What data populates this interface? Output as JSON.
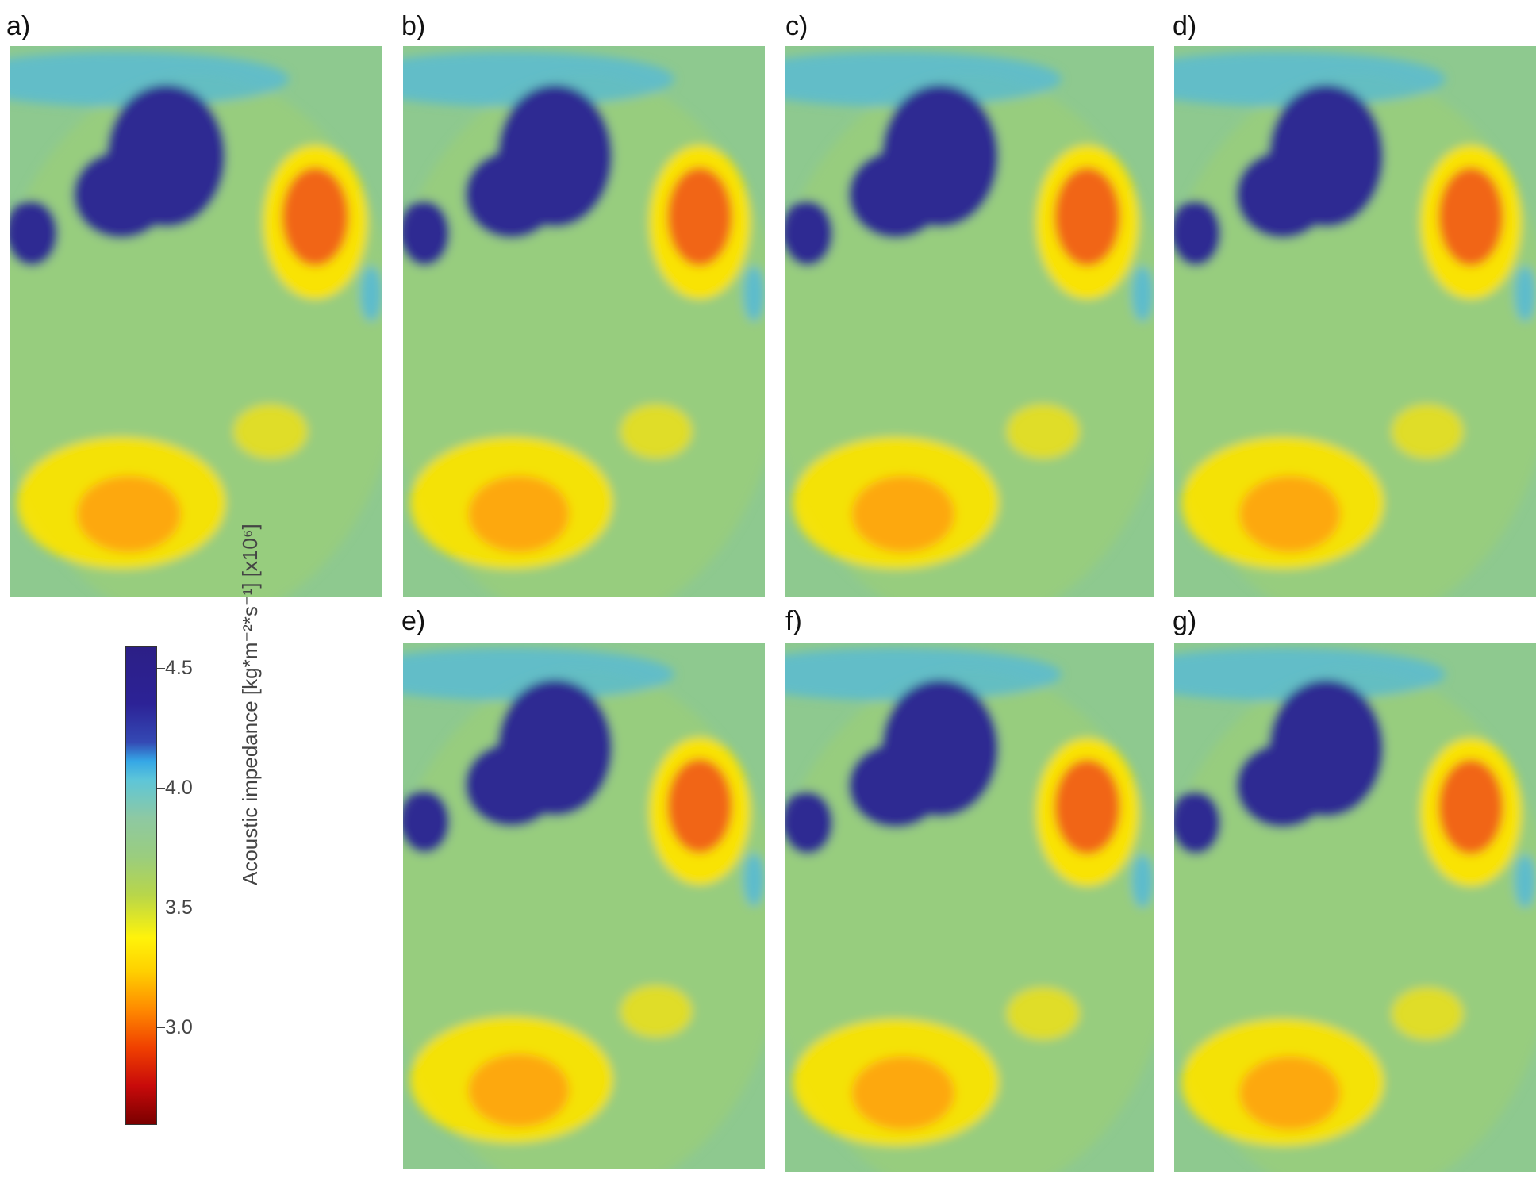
{
  "panels": [
    {
      "label": "a)"
    },
    {
      "label": "b)"
    },
    {
      "label": "c)"
    },
    {
      "label": "d)"
    },
    {
      "label": "e)"
    },
    {
      "label": "f)"
    },
    {
      "label": "g)"
    }
  ],
  "colorbar": {
    "title": "Acoustic impedance [kg*m⁻²*s⁻¹] [x10⁶]",
    "ticks": [
      "4.5",
      "4.0",
      "3.5",
      "3.0"
    ],
    "tick_values": [
      4.5,
      4.0,
      3.5,
      3.0
    ],
    "range": [
      2.6,
      4.6
    ],
    "colors": [
      "#2c1f86",
      "#35a7e6",
      "#8ec9a2",
      "#fff30a",
      "#ff8a00",
      "#c80a0a",
      "#7a0000"
    ]
  }
}
